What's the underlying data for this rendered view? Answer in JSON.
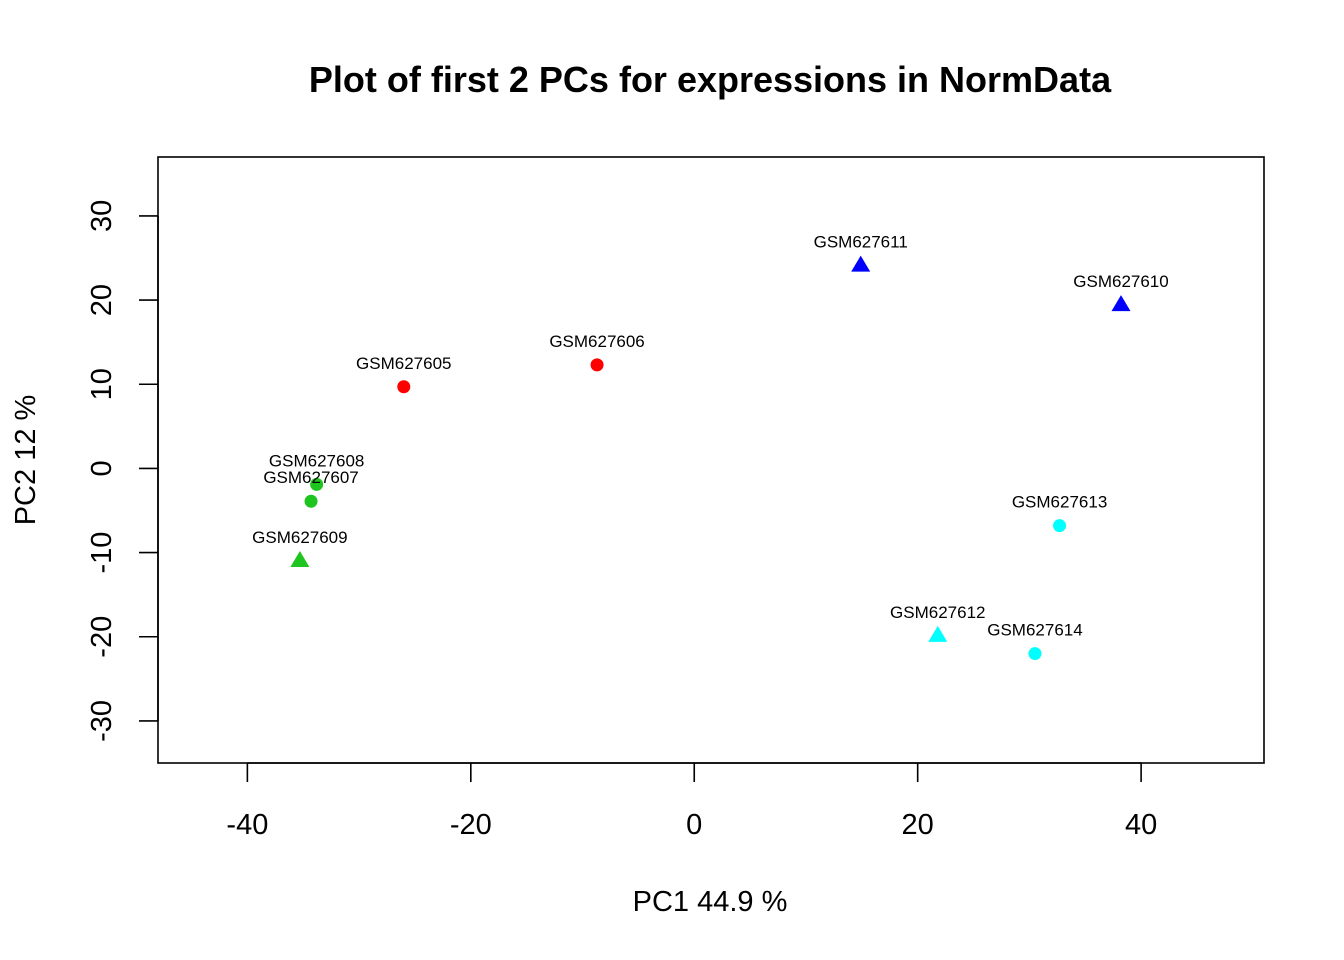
{
  "chart_data": {
    "type": "scatter",
    "title": "Plot of first 2 PCs for expressions in NormData",
    "xlabel": "PC1 44.9 %",
    "ylabel": "PC2 12 %",
    "xlim": [
      -48,
      51
    ],
    "ylim": [
      -35,
      37
    ],
    "x_ticks": [
      -40,
      -20,
      0,
      20,
      40
    ],
    "y_ticks": [
      -30,
      -20,
      -10,
      0,
      10,
      20,
      30
    ],
    "grid": false,
    "points": [
      {
        "label": "GSM627605",
        "x": -26.0,
        "y": 9.7,
        "color": "#ff0000",
        "shape": "circle"
      },
      {
        "label": "GSM627606",
        "x": -8.7,
        "y": 12.3,
        "color": "#ff0000",
        "shape": "circle"
      },
      {
        "label": "GSM627607",
        "x": -34.3,
        "y": -3.9,
        "color": "#1ec51e",
        "shape": "circle"
      },
      {
        "label": "GSM627608",
        "x": -33.8,
        "y": -1.9,
        "color": "#1ec51e",
        "shape": "circle"
      },
      {
        "label": "GSM627609",
        "x": -35.3,
        "y": -11.0,
        "color": "#1ec51e",
        "shape": "triangle"
      },
      {
        "label": "GSM627610",
        "x": 38.2,
        "y": 19.4,
        "color": "#0000ff",
        "shape": "triangle"
      },
      {
        "label": "GSM627611",
        "x": 14.9,
        "y": 24.1,
        "color": "#0000ff",
        "shape": "triangle"
      },
      {
        "label": "GSM627612",
        "x": 21.8,
        "y": -19.9,
        "color": "#00ffff",
        "shape": "triangle"
      },
      {
        "label": "GSM627613",
        "x": 32.7,
        "y": -6.8,
        "color": "#00ffff",
        "shape": "circle"
      },
      {
        "label": "GSM627614",
        "x": 30.5,
        "y": -22.0,
        "color": "#00ffff",
        "shape": "circle"
      }
    ]
  }
}
